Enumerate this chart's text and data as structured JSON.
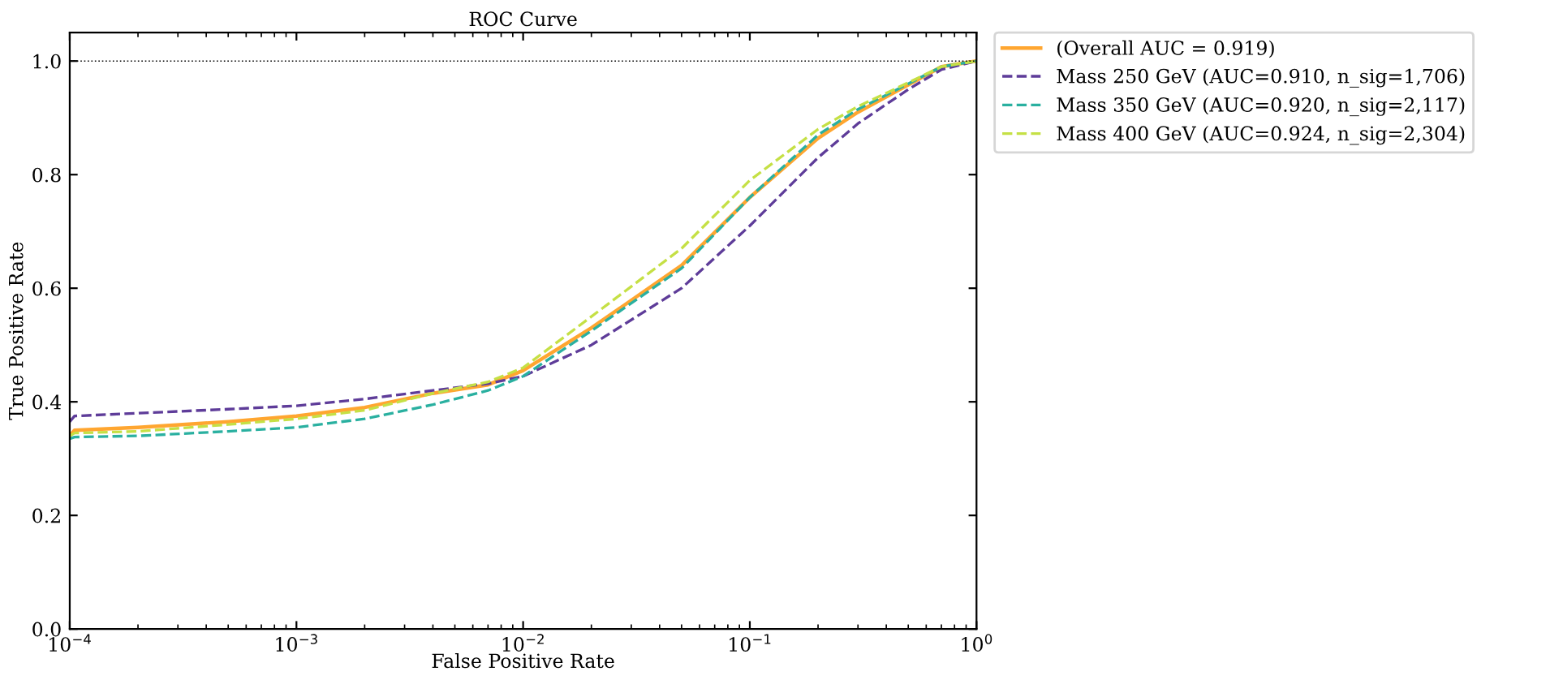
{
  "chart_data": {
    "type": "line",
    "title": "ROC Curve",
    "xlabel": "False Positive Rate",
    "ylabel": "True Positive Rate",
    "log": "x",
    "xlim": [
      0.0001,
      1
    ],
    "ylim": [
      0,
      1.05
    ],
    "xticks": [
      {
        "value": 0.0001,
        "label": "10$^{−4}$"
      },
      {
        "value": 0.001,
        "label": "10$^{−3}$"
      },
      {
        "value": 0.01,
        "label": "10$^{−2}$"
      },
      {
        "value": 0.1,
        "label": "10$^{−1}$"
      },
      {
        "value": 1,
        "label": "10$^{0}$"
      }
    ],
    "yticks": [
      {
        "value": 0,
        "label": "0.0"
      },
      {
        "value": 0.2,
        "label": "0.2"
      },
      {
        "value": 0.4,
        "label": "0.4"
      },
      {
        "value": 0.6,
        "label": "0.6"
      },
      {
        "value": 0.8,
        "label": "0.8"
      },
      {
        "value": 1,
        "label": "1.0"
      }
    ],
    "grid": false,
    "legend": "top right",
    "marker": "none",
    "ref_lines": [
      {
        "axis": "y",
        "value": 1,
        "color": "#000000",
        "line_style": "dotted"
      }
    ],
    "series": [
      {
        "name": "(Overall AUC = 0.919)",
        "color": "#ffa630",
        "line_style": "solid",
        "x": [
          0.0001,
          0.000105,
          0.0002,
          0.0005,
          0.001,
          0.002,
          0.004,
          0.007,
          0.01,
          0.02,
          0.05,
          0.1,
          0.2,
          0.3,
          0.5,
          0.7,
          1
        ],
        "values": [
          0.34,
          0.35,
          0.355,
          0.365,
          0.375,
          0.39,
          0.415,
          0.43,
          0.455,
          0.53,
          0.64,
          0.76,
          0.864,
          0.91,
          0.958,
          0.99,
          1.0
        ]
      },
      {
        "name": "Mass 250 GeV (AUC=0.910, n_sig=1,706)",
        "color": "#5e3c99",
        "line_style": "dashed",
        "x": [
          0.0001,
          0.000105,
          0.0002,
          0.0005,
          0.001,
          0.002,
          0.004,
          0.007,
          0.01,
          0.02,
          0.05,
          0.1,
          0.2,
          0.3,
          0.5,
          0.7,
          1
        ],
        "values": [
          0.365,
          0.375,
          0.38,
          0.387,
          0.393,
          0.405,
          0.42,
          0.432,
          0.445,
          0.5,
          0.6,
          0.71,
          0.83,
          0.89,
          0.95,
          0.985,
          1.0
        ]
      },
      {
        "name": "Mass 350 GeV (AUC=0.920, n_sig=2,117)",
        "color": "#2ab0a0",
        "line_style": "dashed",
        "x": [
          0.0001,
          0.000105,
          0.0002,
          0.0005,
          0.001,
          0.002,
          0.004,
          0.007,
          0.01,
          0.02,
          0.05,
          0.1,
          0.2,
          0.3,
          0.5,
          0.7,
          1
        ],
        "values": [
          0.335,
          0.338,
          0.34,
          0.348,
          0.355,
          0.37,
          0.395,
          0.42,
          0.445,
          0.525,
          0.635,
          0.76,
          0.87,
          0.915,
          0.96,
          0.99,
          1.0
        ]
      },
      {
        "name": "Mass 400 GeV (AUC=0.924, n_sig=2,304)",
        "color": "#c5e045",
        "line_style": "dashed",
        "x": [
          0.0001,
          0.000105,
          0.0002,
          0.0005,
          0.001,
          0.002,
          0.004,
          0.007,
          0.01,
          0.02,
          0.05,
          0.1,
          0.2,
          0.3,
          0.5,
          0.7,
          1
        ],
        "values": [
          0.34,
          0.345,
          0.348,
          0.36,
          0.37,
          0.385,
          0.415,
          0.435,
          0.46,
          0.55,
          0.67,
          0.79,
          0.88,
          0.92,
          0.962,
          0.99,
          1.0
        ]
      }
    ]
  }
}
